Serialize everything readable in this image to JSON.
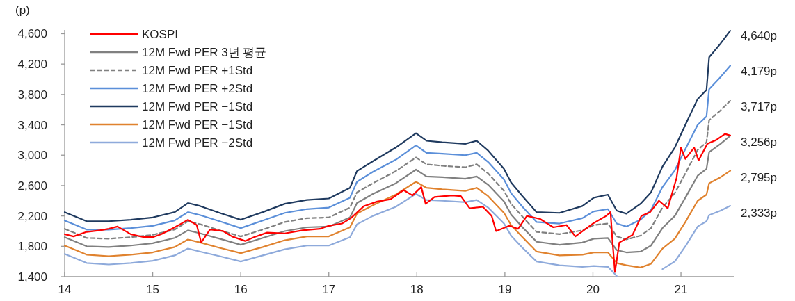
{
  "chart_data": {
    "type": "line",
    "ylabel": "(p)",
    "legend": "top left",
    "xlim": [
      14,
      21.6
    ],
    "xticks": [
      14,
      15,
      16,
      17,
      18,
      19,
      20,
      21
    ],
    "ylim": [
      1400,
      4650
    ],
    "yticks": [
      {
        "value": 1400,
        "label": "1,400"
      },
      {
        "value": 1800,
        "label": "1,800"
      },
      {
        "value": 2200,
        "label": "2,200"
      },
      {
        "value": 2600,
        "label": "2,600"
      },
      {
        "value": 3000,
        "label": "3,000"
      },
      {
        "value": 3400,
        "label": "3,400"
      },
      {
        "value": 3800,
        "label": "3,800"
      },
      {
        "value": 4200,
        "label": "4,200"
      },
      {
        "value": 4600,
        "label": "4,600"
      }
    ],
    "x": [
      14.0,
      14.25,
      14.5,
      14.75,
      15.0,
      15.25,
      15.4,
      15.54,
      15.76,
      16.0,
      16.25,
      16.5,
      16.75,
      17.0,
      17.24,
      17.32,
      17.5,
      17.76,
      17.99,
      18.11,
      18.29,
      18.55,
      18.68,
      18.81,
      18.99,
      19.07,
      19.2,
      19.36,
      19.62,
      19.88,
      20.01,
      20.17,
      20.27,
      20.38,
      20.54,
      20.66,
      20.79,
      20.93,
      21.05,
      21.19,
      21.29,
      21.32,
      21.45,
      21.56
    ],
    "series": [
      {
        "name": "KOSPI",
        "color": "#ff0000",
        "x": [
          14.0,
          14.1,
          14.25,
          14.4,
          14.5,
          14.6,
          14.75,
          14.9,
          15.0,
          15.1,
          15.25,
          15.4,
          15.5,
          15.55,
          15.65,
          15.8,
          15.9,
          16.05,
          16.15,
          16.3,
          16.5,
          16.7,
          16.9,
          17.0,
          17.15,
          17.25,
          17.4,
          17.55,
          17.7,
          17.85,
          17.95,
          18.05,
          18.1,
          18.2,
          18.4,
          18.5,
          18.6,
          18.75,
          18.85,
          18.9,
          19.05,
          19.15,
          19.25,
          19.4,
          19.55,
          19.7,
          19.8,
          20.0,
          20.15,
          20.2,
          20.22,
          20.25,
          20.3,
          20.45,
          20.55,
          20.65,
          20.75,
          20.85,
          20.95,
          21.0,
          21.05,
          21.15,
          21.2,
          21.3,
          21.4,
          21.5,
          21.56
        ],
        "values": [
          1960,
          1930,
          1990,
          2010,
          2030,
          2060,
          1960,
          1920,
          1920,
          1960,
          2050,
          2150,
          2080,
          1850,
          2020,
          2000,
          1930,
          1870,
          1920,
          1980,
          1970,
          2010,
          2030,
          2070,
          2100,
          2170,
          2330,
          2390,
          2420,
          2540,
          2470,
          2580,
          2360,
          2450,
          2470,
          2460,
          2300,
          2320,
          2200,
          2000,
          2070,
          2030,
          2200,
          2160,
          2050,
          2080,
          1930,
          2100,
          2200,
          2250,
          1900,
          1460,
          1850,
          1950,
          2200,
          2250,
          2400,
          2300,
          2700,
          3100,
          2950,
          3100,
          2930,
          3150,
          3200,
          3280,
          3260
        ]
      },
      {
        "name": "12M Fwd PER 3년 평균",
        "color": "#808080",
        "values": [
          1920,
          1800,
          1790,
          1810,
          1840,
          1910,
          2010,
          1970,
          1900,
          1820,
          1910,
          2000,
          2050,
          2060,
          2180,
          2370,
          2490,
          2630,
          2810,
          2720,
          2710,
          2690,
          2720,
          2610,
          2390,
          2220,
          2050,
          1860,
          1820,
          1850,
          1900,
          1910,
          1750,
          1720,
          1730,
          1810,
          2040,
          2200,
          2440,
          2730,
          2820,
          3040,
          3150,
          3256
        ]
      },
      {
        "name": "12M Fwd PER +1Std",
        "color": "#808080",
        "line_style": "dashed",
        "values": [
          2030,
          1910,
          1900,
          1920,
          1950,
          2020,
          2130,
          2090,
          2010,
          1930,
          2020,
          2120,
          2170,
          2180,
          2310,
          2510,
          2630,
          2790,
          2970,
          2880,
          2860,
          2840,
          2880,
          2760,
          2530,
          2360,
          2190,
          1990,
          1960,
          2010,
          2080,
          2100,
          1930,
          1890,
          1940,
          2040,
          2310,
          2500,
          2760,
          3070,
          3170,
          3460,
          3590,
          3717
        ]
      },
      {
        "name": "12M Fwd PER +2Std",
        "color": "#5b8fd9",
        "values": [
          2140,
          2020,
          2020,
          2040,
          2070,
          2140,
          2250,
          2210,
          2130,
          2040,
          2140,
          2240,
          2290,
          2310,
          2440,
          2650,
          2780,
          2940,
          3130,
          3030,
          3020,
          3000,
          3030,
          2910,
          2680,
          2500,
          2320,
          2120,
          2100,
          2170,
          2260,
          2290,
          2100,
          2060,
          2150,
          2280,
          2580,
          2800,
          3080,
          3400,
          3510,
          3870,
          4030,
          4179
        ]
      },
      {
        "name": "12M Fwd PER −1Std",
        "color": "#1f3a5f",
        "values": [
          2250,
          2130,
          2130,
          2150,
          2180,
          2250,
          2370,
          2330,
          2240,
          2150,
          2250,
          2360,
          2410,
          2430,
          2570,
          2790,
          2920,
          3100,
          3290,
          3190,
          3170,
          3150,
          3190,
          3060,
          2820,
          2640,
          2460,
          2250,
          2240,
          2330,
          2440,
          2480,
          2270,
          2230,
          2360,
          2510,
          2850,
          3100,
          3400,
          3740,
          3860,
          4290,
          4470,
          4640
        ]
      },
      {
        "name": "12M Fwd PER −1Std",
        "color": "#e0822e",
        "values": [
          1810,
          1690,
          1670,
          1690,
          1720,
          1790,
          1890,
          1850,
          1780,
          1710,
          1790,
          1880,
          1930,
          1930,
          2050,
          2230,
          2340,
          2480,
          2650,
          2570,
          2550,
          2530,
          2570,
          2460,
          2240,
          2080,
          1920,
          1730,
          1680,
          1690,
          1720,
          1720,
          1580,
          1550,
          1520,
          1570,
          1770,
          1900,
          2120,
          2400,
          2480,
          2630,
          2710,
          2795
        ]
      },
      {
        "name": "12M Fwd PER −2Std",
        "color": "#8eaadb",
        "values": [
          1700,
          1580,
          1560,
          1580,
          1610,
          1680,
          1770,
          1730,
          1670,
          1600,
          1680,
          1760,
          1810,
          1810,
          1920,
          2090,
          2200,
          2320,
          2490,
          2410,
          2400,
          2380,
          2410,
          2310,
          2100,
          1940,
          1780,
          1600,
          1550,
          1530,
          1540,
          1530,
          1410,
          null,
          null,
          null,
          1500,
          1600,
          1800,
          2060,
          2130,
          2210,
          2270,
          2333
        ]
      }
    ],
    "annotations": [
      "4,640p",
      "4,179p",
      "3,717p",
      "3,256p",
      "2,795p",
      "2,333p"
    ]
  }
}
